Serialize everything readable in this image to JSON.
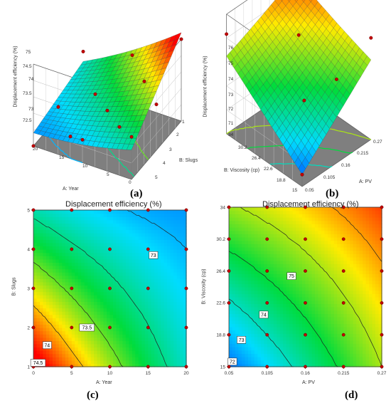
{
  "chart_data": [
    {
      "panel": "(a)",
      "type": "surface3d",
      "title": "",
      "zlabel": "Displacement efficiency (%)",
      "xlabel": "A: Year",
      "ylabel": "B: Slugs",
      "xlim": [
        0,
        20
      ],
      "ylim": [
        1,
        5
      ],
      "zlim": [
        72.5,
        75
      ],
      "xticks": [
        "20",
        "15",
        "10",
        "5",
        "0"
      ],
      "yticks": [
        "1",
        "2",
        "3",
        "4",
        "5"
      ],
      "zticks": [
        "75",
        "74.5",
        "74",
        "73.5",
        "73",
        "72.5"
      ],
      "design_points": [
        {
          "x": 0,
          "y": 1,
          "z": 75.0
        },
        {
          "x": 20,
          "y": 1,
          "z": 73.6
        },
        {
          "x": 0,
          "y": 5,
          "z": 73.8
        },
        {
          "x": 20,
          "y": 5,
          "z": 72.5
        },
        {
          "x": 10,
          "y": 3,
          "z": 73.2
        },
        {
          "x": 5,
          "y": 2,
          "z": 73.9
        },
        {
          "x": 15,
          "y": 4,
          "z": 72.6
        },
        {
          "x": 5,
          "y": 4,
          "z": 73.4
        },
        {
          "x": 15,
          "y": 2,
          "z": 73.0
        },
        {
          "x": 10,
          "y": 1,
          "z": 74.0
        },
        {
          "x": 10,
          "y": 5,
          "z": 73.2
        },
        {
          "x": 0,
          "y": 3,
          "z": 73.9
        },
        {
          "x": 20,
          "y": 3,
          "z": 72.8
        }
      ]
    },
    {
      "panel": "(b)",
      "type": "surface3d",
      "title": "",
      "zlabel": "Displacement efficiency (%)",
      "xlabel": "A: PV",
      "ylabel": "B: Viscosity (cp)",
      "xlim": [
        0.05,
        0.27
      ],
      "ylim": [
        15,
        34
      ],
      "zlim": [
        70,
        76
      ],
      "xticks": [
        "0.05",
        "0.105",
        "0.16",
        "0.215",
        "0.27"
      ],
      "yticks": [
        "15",
        "18.8",
        "22.6",
        "26.4",
        "30.2",
        "34"
      ],
      "zticks": [
        "76",
        "75",
        "74",
        "73",
        "72",
        "71"
      ],
      "design_points": [
        {
          "x": 0.05,
          "y": 15,
          "z": 70.6
        },
        {
          "x": 0.27,
          "y": 34,
          "z": 75.8
        },
        {
          "x": 0.16,
          "y": 24.5,
          "z": 75.1
        },
        {
          "x": 0.105,
          "y": 18.8,
          "z": 73.2
        },
        {
          "x": 0.215,
          "y": 30.2,
          "z": 75.9
        },
        {
          "x": 0.27,
          "y": 15,
          "z": 75.1
        },
        {
          "x": 0.05,
          "y": 34,
          "z": 75.0
        },
        {
          "x": 0.16,
          "y": 15,
          "z": 74.2
        },
        {
          "x": 0.16,
          "y": 34,
          "z": 75.9
        }
      ]
    },
    {
      "panel": "(c)",
      "type": "contour",
      "title": "Displacement efficiency (%)",
      "xlabel": "A: Year",
      "ylabel": "B: Slugs",
      "xlim": [
        0,
        20
      ],
      "ylim": [
        1,
        5
      ],
      "xticks": [
        0,
        5,
        10,
        15,
        20
      ],
      "yticks": [
        1,
        2,
        3,
        4,
        5
      ],
      "contour_labels": [
        "73",
        "73.5",
        "74",
        "74.5"
      ],
      "design_points": [
        [
          0,
          1
        ],
        [
          5,
          1
        ],
        [
          10,
          1
        ],
        [
          15,
          1
        ],
        [
          20,
          1
        ],
        [
          0,
          2
        ],
        [
          5,
          2
        ],
        [
          10,
          2
        ],
        [
          15,
          2
        ],
        [
          20,
          2
        ],
        [
          0,
          3
        ],
        [
          5,
          3
        ],
        [
          10,
          3
        ],
        [
          15,
          3
        ],
        [
          20,
          3
        ],
        [
          0,
          4
        ],
        [
          5,
          4
        ],
        [
          10,
          4
        ],
        [
          15,
          4
        ],
        [
          20,
          4
        ],
        [
          0,
          5
        ],
        [
          5,
          5
        ],
        [
          10,
          5
        ],
        [
          15,
          5
        ],
        [
          20,
          5
        ]
      ]
    },
    {
      "panel": "(d)",
      "type": "contour",
      "title": "Displacement efficiency (%)",
      "xlabel": "A: PV",
      "ylabel": "B: Viscosity (cp)",
      "xlim": [
        0.05,
        0.27
      ],
      "ylim": [
        15,
        34
      ],
      "xticks": [
        "0.05",
        "0.105",
        "0.16",
        "0.215",
        "0.27"
      ],
      "yticks": [
        "15",
        "18.8",
        "22.6",
        "26.4",
        "30.2",
        "34"
      ],
      "contour_labels": [
        "72",
        "73",
        "74",
        "75"
      ],
      "design_points": [
        [
          0.05,
          15
        ],
        [
          0.105,
          15
        ],
        [
          0.16,
          15
        ],
        [
          0.215,
          15
        ],
        [
          0.27,
          15
        ],
        [
          0.05,
          18.8
        ],
        [
          0.105,
          18.8
        ],
        [
          0.16,
          18.8
        ],
        [
          0.215,
          18.8
        ],
        [
          0.27,
          18.8
        ],
        [
          0.05,
          22.6
        ],
        [
          0.105,
          22.6
        ],
        [
          0.16,
          22.6
        ],
        [
          0.215,
          22.6
        ],
        [
          0.27,
          22.6
        ],
        [
          0.05,
          26.4
        ],
        [
          0.105,
          26.4
        ],
        [
          0.16,
          26.4
        ],
        [
          0.215,
          26.4
        ],
        [
          0.27,
          26.4
        ],
        [
          0.05,
          30.2
        ],
        [
          0.105,
          30.2
        ],
        [
          0.16,
          30.2
        ],
        [
          0.215,
          30.2
        ],
        [
          0.27,
          30.2
        ],
        [
          0.05,
          34
        ],
        [
          0.105,
          34
        ],
        [
          0.16,
          34
        ],
        [
          0.215,
          34
        ],
        [
          0.27,
          34
        ]
      ]
    }
  ]
}
